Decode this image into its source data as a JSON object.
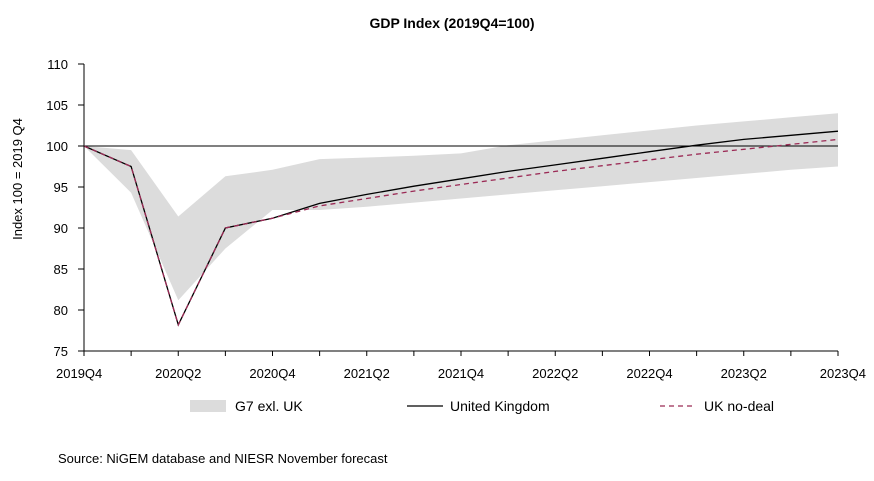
{
  "chart_data": {
    "type": "line",
    "title": "GDP Index (2019Q4=100)",
    "xlabel": "",
    "ylabel": "Index 100 = 2019 Q4",
    "ylim": [
      75,
      110
    ],
    "yticks": [
      75,
      80,
      85,
      90,
      95,
      100,
      105,
      110
    ],
    "xticklabels": [
      "2019Q4",
      "2020Q2",
      "2020Q4",
      "2021Q2",
      "2021Q4",
      "2022Q2",
      "2022Q4",
      "2023Q2",
      "2023Q4"
    ],
    "quarters": [
      "2019Q4",
      "2020Q1",
      "2020Q2",
      "2020Q3",
      "2020Q4",
      "2021Q1",
      "2021Q2",
      "2021Q3",
      "2021Q4",
      "2022Q1",
      "2022Q2",
      "2022Q3",
      "2022Q4",
      "2023Q1",
      "2023Q2",
      "2023Q3",
      "2023Q4"
    ],
    "band": {
      "name": "G7 exl. UK",
      "color": "#dcdcdc",
      "lower": [
        100,
        94.3,
        81.2,
        87.5,
        92.2,
        92.2,
        92.6,
        93.1,
        93.6,
        94.1,
        94.6,
        95.1,
        95.6,
        96.1,
        96.6,
        97.1,
        97.5
      ],
      "upper": [
        100,
        99.5,
        91.4,
        96.3,
        97.1,
        98.4,
        98.6,
        98.8,
        99.1,
        100.1,
        100.7,
        101.3,
        101.9,
        102.5,
        103.0,
        103.5,
        104.0
      ]
    },
    "series": [
      {
        "name": "United Kingdom",
        "color": "#000000",
        "dash": false,
        "values": [
          100,
          97.5,
          78.2,
          90.0,
          91.2,
          93.0,
          94.1,
          95.1,
          96.0,
          96.9,
          97.7,
          98.5,
          99.3,
          100.1,
          100.8,
          101.3,
          101.8
        ]
      },
      {
        "name": "UK no-deal",
        "color": "#9b2a55",
        "dash": true,
        "values": [
          100,
          97.5,
          78.2,
          90.0,
          91.2,
          92.7,
          93.6,
          94.5,
          95.3,
          96.1,
          96.9,
          97.6,
          98.3,
          99.0,
          99.6,
          100.2,
          100.8
        ]
      }
    ],
    "reference_line": 100,
    "grid": false,
    "legend_position": "bottom"
  },
  "source_text": "Source: NiGEM database and NIESR November forecast"
}
